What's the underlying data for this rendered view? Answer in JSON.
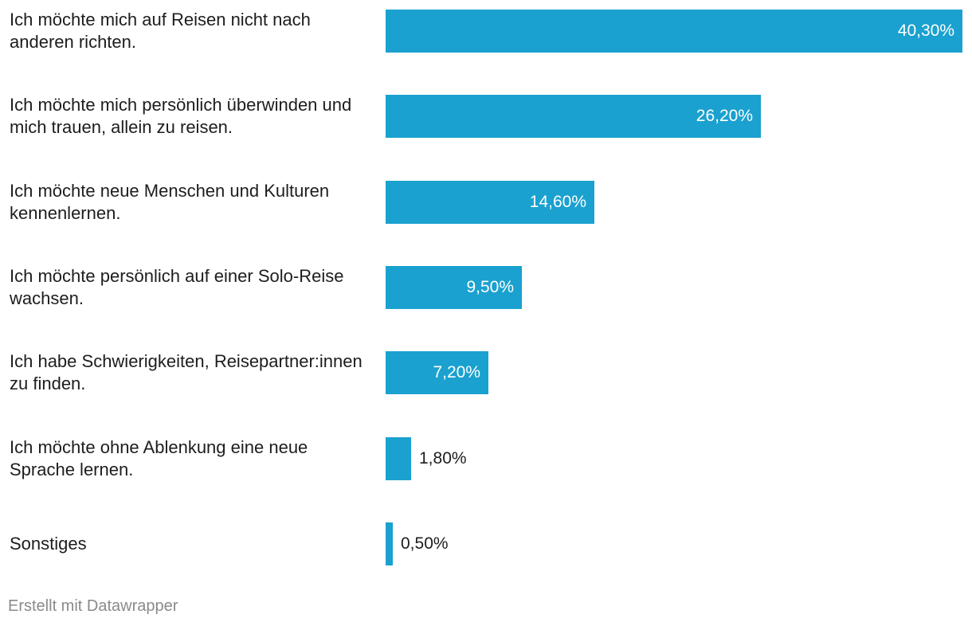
{
  "chart_data": {
    "type": "bar",
    "orientation": "horizontal",
    "categories": [
      "Ich möchte mich auf Reisen nicht nach anderen richten.",
      "Ich möchte mich persönlich überwinden und mich trauen, allein zu reisen.",
      "Ich möchte neue Menschen und Kulturen kennenlernen.",
      "Ich möchte persönlich auf einer Solo-Reise wachsen.",
      "Ich habe Schwierigkeiten, Reisepartner:innen zu finden.",
      "Ich möchte ohne Ablenkung eine neue Sprache lernen.",
      "Sonstiges"
    ],
    "values": [
      40.3,
      26.2,
      14.6,
      9.5,
      7.2,
      1.8,
      0.5
    ],
    "value_labels": [
      "40,30%",
      "26,20%",
      "14,60%",
      "9,50%",
      "7,20%",
      "1,80%",
      "0,50%"
    ],
    "xlim": [
      0,
      40.3
    ],
    "grid": false,
    "bar_color": "#1aa1cf"
  },
  "footer": {
    "credit": "Erstellt mit Datawrapper"
  }
}
